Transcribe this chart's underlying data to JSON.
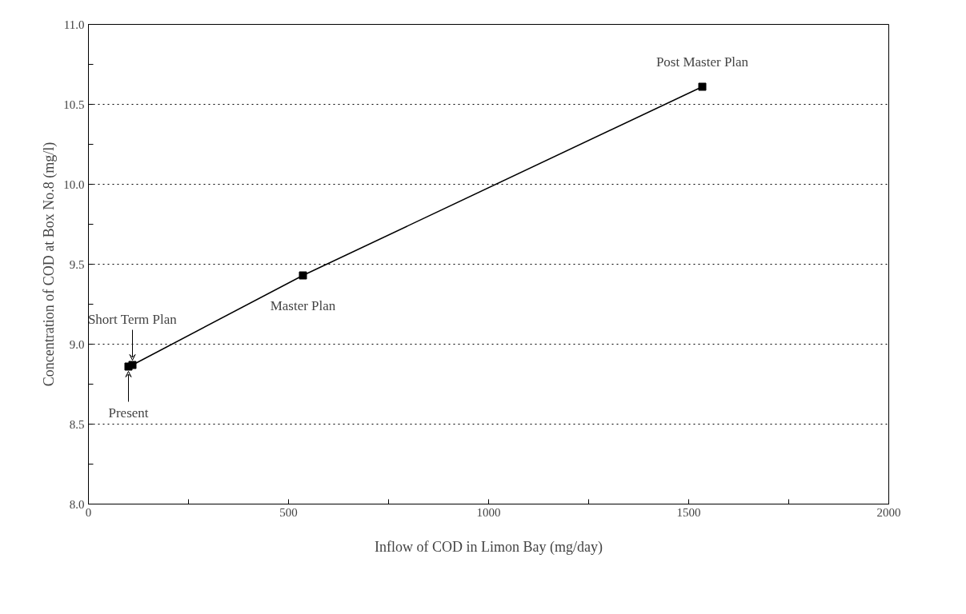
{
  "chart_data": {
    "type": "line",
    "xlabel": "Inflow of COD in Limon Bay (mg/day)",
    "ylabel": "Concentration of COD at Box No.8 (mg/l)",
    "x": [
      100,
      110,
      536,
      1534
    ],
    "series": [
      {
        "color": "#000000",
        "values": [
          8.86,
          8.87,
          9.43,
          10.61
        ]
      }
    ],
    "marker": "square",
    "line_style": "solid",
    "grid": "y",
    "xlim": [
      0,
      2000
    ],
    "ylim": [
      8.0,
      11.0
    ],
    "xticks": [
      0,
      {
        "value": 250,
        "label": null
      },
      500,
      {
        "value": 750,
        "label": null
      },
      1000,
      {
        "value": 1250,
        "label": null
      },
      1500,
      {
        "value": 1750,
        "label": null
      },
      2000
    ],
    "yticks": [
      {
        "value": 8.0,
        "label": "8.0"
      },
      {
        "value": 8.25,
        "label": null
      },
      {
        "value": 8.5,
        "label": "8.5"
      },
      {
        "value": 8.75,
        "label": null
      },
      {
        "value": 9.0,
        "label": "9.0"
      },
      {
        "value": 9.25,
        "label": null
      },
      {
        "value": 9.5,
        "label": "9.5"
      },
      {
        "value": 9.75,
        "label": null
      },
      {
        "value": 10.0,
        "label": "10.0"
      },
      {
        "value": 10.25,
        "label": null
      },
      {
        "value": 10.5,
        "label": "10.5"
      },
      {
        "value": 10.75,
        "label": null
      },
      {
        "value": 11.0,
        "label": "11.0"
      }
    ],
    "annotations": [
      {
        "text": "Short Term Plan",
        "x": 110,
        "y": 8.87
      },
      {
        "text": "Present",
        "x": 100,
        "y": 8.86
      },
      {
        "text": "Master Plan",
        "x": 536,
        "y": 9.43
      },
      {
        "text": "Post Master Plan",
        "x": 1534,
        "y": 10.61
      }
    ]
  }
}
